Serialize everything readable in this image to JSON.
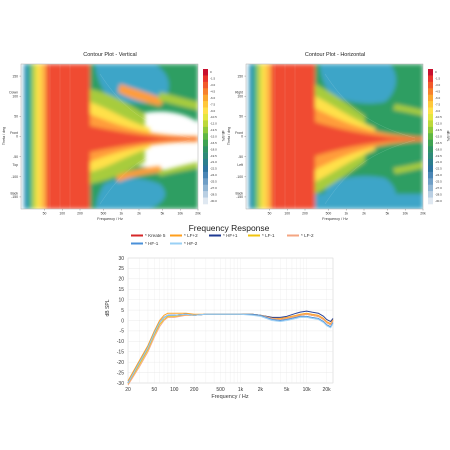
{
  "contour_vertical": {
    "title": "Contour Plot - Vertical",
    "ylabel": "Theta / deg",
    "xlabel": "Frequency / Hz",
    "y_ticks": [
      "150",
      "100",
      "50",
      "0",
      "-50",
      "-100",
      "-150"
    ],
    "y_annotations": [
      "Down",
      "Front",
      "Top",
      "Back"
    ],
    "x_ticks": [
      "50",
      "100",
      "200",
      "500",
      "1k",
      "2k",
      "5k",
      "10k",
      "20k"
    ]
  },
  "contour_horizontal": {
    "title": "Contour Plot - Horizontal",
    "ylabel": "Theta / deg",
    "xlabel": "Frequency / Hz",
    "y_ticks": [
      "150",
      "100",
      "50",
      "0",
      "-50",
      "-100",
      "-150"
    ],
    "y_annotations": [
      "Right",
      "Front",
      "Left",
      "Back"
    ],
    "x_ticks": [
      "50",
      "100",
      "200",
      "500",
      "1k",
      "2k",
      "5k",
      "10k",
      "20k"
    ]
  },
  "colorbar": {
    "ticks": [
      "0",
      "-1.5",
      "-3.0",
      "-4.5",
      "-6.0",
      "-7.5",
      "-9.0",
      "-10.5",
      "-12.0",
      "-13.5",
      "-15.0",
      "-16.5",
      "-18.0",
      "-19.5",
      "-21.0",
      "-22.5",
      "-24.0",
      "-25.5",
      "-27.0",
      "-28.5",
      "-30.0"
    ],
    "label": "dB SPL"
  },
  "chart_data": {
    "type": "line",
    "title": "Frequency Response",
    "xlabel": "Frequency / Hz",
    "ylabel": "dB SPL",
    "x_scale": "log",
    "xlim": [
      20,
      25000
    ],
    "ylim": [
      -30,
      30
    ],
    "y_ticks": [
      30,
      25,
      20,
      15,
      10,
      5,
      0,
      -5,
      -10,
      -15,
      -20,
      -25,
      -30
    ],
    "x_tick_labels": [
      "20",
      "50",
      "100",
      "200",
      "500",
      "1k",
      "2k",
      "5k",
      "10k",
      "20k"
    ],
    "x_tick_values": [
      20,
      50,
      100,
      200,
      500,
      1000,
      2000,
      5000,
      10000,
      20000
    ],
    "legend_position": "top",
    "series": [
      {
        "name": "* Kreate 5",
        "color": "#d62728",
        "x": [
          20,
          30,
          40,
          50,
          60,
          70,
          80,
          100,
          150,
          200,
          300,
          500,
          800,
          1000,
          1500,
          2000,
          3000,
          4000,
          5000,
          7000,
          8000,
          10000,
          12000,
          15000,
          18000,
          20000,
          23000,
          25000
        ],
        "y": [
          -30,
          -20,
          -13,
          -6,
          -1,
          1.5,
          2.5,
          2.5,
          3,
          2.5,
          3,
          3,
          3,
          3,
          3,
          2.5,
          1,
          0.5,
          1,
          2,
          2.5,
          3,
          2.5,
          2,
          0.5,
          -1,
          -2,
          0
        ]
      },
      {
        "name": "* LF+2",
        "color": "#ff9f1c",
        "x": [
          20,
          30,
          40,
          50,
          60,
          70,
          80,
          100,
          150,
          200,
          300,
          500,
          800,
          1000,
          1500,
          2000,
          3000,
          4000,
          5000,
          7000,
          8000,
          10000,
          12000,
          15000,
          18000,
          20000,
          23000,
          25000
        ],
        "y": [
          -29,
          -19,
          -12,
          -5,
          0,
          2.5,
          3.5,
          3.5,
          3.5,
          3,
          3,
          3,
          3,
          3,
          3,
          2.5,
          1.5,
          1,
          1.5,
          2.5,
          3,
          3.5,
          3,
          2.5,
          1,
          -0.5,
          -1.5,
          0.5
        ]
      },
      {
        "name": "* HF+1",
        "color": "#1f3a93",
        "x": [
          20,
          30,
          40,
          50,
          60,
          70,
          80,
          100,
          150,
          200,
          300,
          500,
          800,
          1000,
          1500,
          2000,
          3000,
          4000,
          5000,
          7000,
          8000,
          10000,
          12000,
          15000,
          18000,
          20000,
          23000,
          25000
        ],
        "y": [
          -30,
          -20,
          -13,
          -6,
          -1,
          1.5,
          2.5,
          2.5,
          3,
          2.5,
          3,
          3,
          3,
          3,
          3,
          2.5,
          1.5,
          1.5,
          2,
          3.5,
          4,
          4.5,
          4,
          3.5,
          2,
          0.5,
          -0.5,
          1
        ]
      },
      {
        "name": "* LF-1",
        "color": "#f1c40f",
        "x": [
          20,
          30,
          40,
          50,
          60,
          70,
          80,
          100,
          150,
          200,
          300,
          500,
          800,
          1000,
          1500,
          2000,
          3000,
          4000,
          5000,
          7000,
          8000,
          10000,
          12000,
          15000,
          18000,
          20000,
          23000,
          25000
        ],
        "y": [
          -30.5,
          -21,
          -14,
          -7,
          -2,
          0.5,
          2,
          2,
          2.5,
          2.5,
          3,
          3,
          3,
          3,
          3,
          2.5,
          1,
          0.5,
          1,
          2,
          2.5,
          3,
          2.5,
          2,
          0.5,
          -1,
          -2,
          0
        ]
      },
      {
        "name": "* LF-2",
        "color": "#f4a582",
        "x": [
          20,
          30,
          40,
          50,
          60,
          70,
          80,
          100,
          150,
          200,
          300,
          500,
          800,
          1000,
          1500,
          2000,
          3000,
          4000,
          5000,
          7000,
          8000,
          10000,
          12000,
          15000,
          18000,
          20000,
          23000,
          25000
        ],
        "y": [
          -31,
          -22,
          -15,
          -8,
          -3,
          0,
          1.5,
          1.5,
          2.5,
          2.5,
          3,
          3,
          3,
          3,
          3,
          2.5,
          1,
          0.5,
          1,
          2,
          2.5,
          3,
          2.5,
          2,
          0.5,
          -1,
          -2,
          0
        ]
      },
      {
        "name": "* HF-1",
        "color": "#4a90d9",
        "x": [
          20,
          30,
          40,
          50,
          60,
          70,
          80,
          100,
          150,
          200,
          300,
          500,
          800,
          1000,
          1500,
          2000,
          3000,
          4000,
          5000,
          7000,
          8000,
          10000,
          12000,
          15000,
          18000,
          20000,
          23000,
          25000
        ],
        "y": [
          -30,
          -20,
          -13,
          -6,
          -1,
          1.5,
          2.5,
          2.5,
          3,
          2.5,
          3,
          3,
          3,
          3,
          3,
          2.5,
          0.5,
          0,
          0.5,
          1.5,
          2,
          2,
          1.5,
          1,
          -0.5,
          -2,
          -3,
          -1
        ]
      },
      {
        "name": "* HF-2",
        "color": "#9ad0f5",
        "x": [
          20,
          30,
          40,
          50,
          60,
          70,
          80,
          100,
          150,
          200,
          300,
          500,
          800,
          1000,
          1500,
          2000,
          3000,
          4000,
          5000,
          7000,
          8000,
          10000,
          12000,
          15000,
          18000,
          20000,
          23000,
          25000
        ],
        "y": [
          -30,
          -20,
          -13,
          -6,
          -1,
          1.5,
          2.5,
          2.5,
          3,
          2.5,
          3,
          3,
          3,
          3,
          2.5,
          2,
          0,
          -0.5,
          0,
          1,
          1.5,
          1.5,
          1,
          0.5,
          -1,
          -2.5,
          -3.5,
          -1.5
        ]
      }
    ]
  }
}
